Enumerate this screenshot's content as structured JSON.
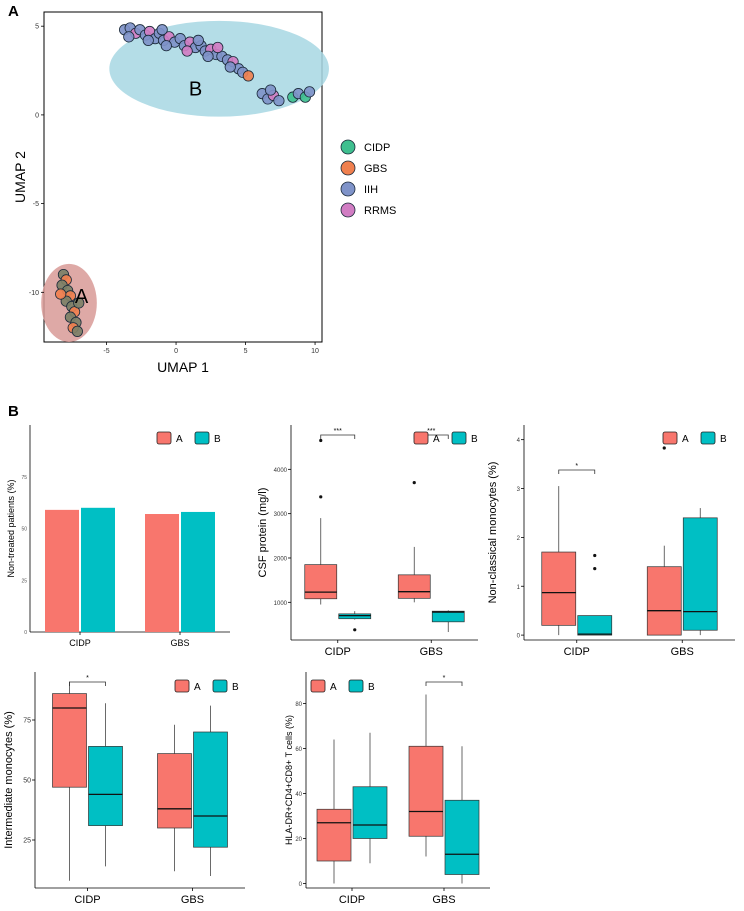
{
  "panels": {
    "a": "A",
    "b": "B"
  },
  "colors": {
    "CIDP": "#3fbf8f",
    "GBS": "#f0804f",
    "IIH": "#7f93c9",
    "RRMS": "#d17dc3",
    "groupA": "#f8766d",
    "groupB": "#00bfc4",
    "ellipseA": "#d89a96",
    "ellipseB": "#a7d7e3"
  },
  "chart_data": [
    {
      "type": "scatter",
      "xlabel": "UMAP 1",
      "ylabel": "UMAP 2",
      "xlim": [
        -9.5,
        10.5
      ],
      "ylim": [
        -12.8,
        5.8
      ],
      "xticks": [
        "-5",
        "0",
        "5",
        "10"
      ],
      "yticks": [
        "5",
        "0",
        "-5",
        "-10"
      ],
      "legend": [
        "CIDP",
        "GBS",
        "IIH",
        "RRMS"
      ],
      "clusters": [
        {
          "label": "A",
          "center": [
            -7.7,
            -10.6
          ],
          "rx": 2.0,
          "ry": 2.2,
          "label_pos": [
            -6.8,
            -10.2
          ]
        },
        {
          "label": "B",
          "center": [
            3.1,
            2.6
          ],
          "rx": 7.9,
          "ry": 2.7,
          "label_pos": [
            1.4,
            1.5
          ]
        }
      ],
      "points": [
        {
          "x": -3.7,
          "y": 4.8,
          "g": "IIH"
        },
        {
          "x": -3.3,
          "y": 4.9,
          "g": "IIH"
        },
        {
          "x": -2.9,
          "y": 4.6,
          "g": "RRMS"
        },
        {
          "x": -2.6,
          "y": 4.8,
          "g": "IIH"
        },
        {
          "x": -2.2,
          "y": 4.5,
          "g": "IIH"
        },
        {
          "x": -1.9,
          "y": 4.7,
          "g": "RRMS"
        },
        {
          "x": -1.5,
          "y": 4.3,
          "g": "IIH"
        },
        {
          "x": -1.2,
          "y": 4.6,
          "g": "IIH"
        },
        {
          "x": -0.9,
          "y": 4.2,
          "g": "IIH"
        },
        {
          "x": -0.5,
          "y": 4.4,
          "g": "RRMS"
        },
        {
          "x": -0.1,
          "y": 4.1,
          "g": "IIH"
        },
        {
          "x": 0.3,
          "y": 4.3,
          "g": "IIH"
        },
        {
          "x": 0.6,
          "y": 3.9,
          "g": "IIH"
        },
        {
          "x": 1.0,
          "y": 4.1,
          "g": "RRMS"
        },
        {
          "x": 1.4,
          "y": 3.8,
          "g": "IIH"
        },
        {
          "x": 1.8,
          "y": 3.9,
          "g": "IIH"
        },
        {
          "x": 2.1,
          "y": 3.6,
          "g": "IIH"
        },
        {
          "x": 2.5,
          "y": 3.7,
          "g": "RRMS"
        },
        {
          "x": 2.9,
          "y": 3.4,
          "g": "IIH"
        },
        {
          "x": 3.3,
          "y": 3.3,
          "g": "IIH"
        },
        {
          "x": 3.7,
          "y": 3.1,
          "g": "IIH"
        },
        {
          "x": 4.1,
          "y": 3.0,
          "g": "RRMS"
        },
        {
          "x": 4.5,
          "y": 2.6,
          "g": "IIH"
        },
        {
          "x": 4.8,
          "y": 2.4,
          "g": "IIH"
        },
        {
          "x": 5.2,
          "y": 2.2,
          "g": "GBS"
        },
        {
          "x": -3.4,
          "y": 4.4,
          "g": "IIH"
        },
        {
          "x": -2.0,
          "y": 4.2,
          "g": "IIH"
        },
        {
          "x": -0.7,
          "y": 3.9,
          "g": "IIH"
        },
        {
          "x": 0.8,
          "y": 3.6,
          "g": "RRMS"
        },
        {
          "x": 2.3,
          "y": 3.3,
          "g": "IIH"
        },
        {
          "x": 3.9,
          "y": 2.7,
          "g": "IIH"
        },
        {
          "x": -1.0,
          "y": 4.8,
          "g": "IIH"
        },
        {
          "x": 1.6,
          "y": 4.2,
          "g": "IIH"
        },
        {
          "x": 3.0,
          "y": 3.8,
          "g": "RRMS"
        },
        {
          "x": 6.2,
          "y": 1.2,
          "g": "IIH"
        },
        {
          "x": 6.6,
          "y": 0.9,
          "g": "IIH"
        },
        {
          "x": 7.0,
          "y": 1.1,
          "g": "RRMS"
        },
        {
          "x": 7.4,
          "y": 0.8,
          "g": "IIH"
        },
        {
          "x": 6.8,
          "y": 1.4,
          "g": "IIH"
        },
        {
          "x": 8.4,
          "y": 1.0,
          "g": "CIDP"
        },
        {
          "x": 8.8,
          "y": 1.2,
          "g": "IIH"
        },
        {
          "x": 9.3,
          "y": 1.0,
          "g": "CIDP"
        },
        {
          "x": 9.6,
          "y": 1.3,
          "g": "IIH"
        },
        {
          "x": -8.1,
          "y": -9.0,
          "g": "CIDP"
        },
        {
          "x": -7.9,
          "y": -9.3,
          "g": "GBS"
        },
        {
          "x": -8.2,
          "y": -9.6,
          "g": "CIDP"
        },
        {
          "x": -7.8,
          "y": -9.9,
          "g": "CIDP"
        },
        {
          "x": -7.6,
          "y": -10.2,
          "g": "GBS"
        },
        {
          "x": -7.9,
          "y": -10.5,
          "g": "CIDP"
        },
        {
          "x": -7.5,
          "y": -10.8,
          "g": "CIDP"
        },
        {
          "x": -7.3,
          "y": -11.1,
          "g": "GBS"
        },
        {
          "x": -7.6,
          "y": -11.4,
          "g": "CIDP"
        },
        {
          "x": -7.2,
          "y": -11.7,
          "g": "CIDP"
        },
        {
          "x": -7.4,
          "y": -12.0,
          "g": "GBS"
        },
        {
          "x": -7.1,
          "y": -12.2,
          "g": "CIDP"
        },
        {
          "x": -7.0,
          "y": -10.6,
          "g": "CIDP"
        },
        {
          "x": -8.3,
          "y": -10.1,
          "g": "GBS"
        }
      ]
    },
    {
      "type": "bar",
      "ylabel": "Non-treated patients (%)",
      "categories": [
        "CIDP",
        "GBS"
      ],
      "series": [
        {
          "name": "A",
          "values": [
            59,
            57
          ]
        },
        {
          "name": "B",
          "values": [
            60,
            58
          ]
        }
      ],
      "ylim": [
        0,
        100
      ],
      "legend": [
        "A",
        "B"
      ]
    },
    {
      "type": "box",
      "ylabel": "CSF protein (mg/l)",
      "categories": [
        "CIDP",
        "GBS"
      ],
      "ylim": [
        150,
        5000
      ],
      "yticks": [
        "1000",
        "2000",
        "3000",
        "4000"
      ],
      "legend": [
        "A",
        "B"
      ],
      "significance": [
        {
          "category": "CIDP",
          "label": "***"
        },
        {
          "category": "GBS",
          "label": "***"
        }
      ],
      "boxes": [
        {
          "category": "CIDP",
          "group": "A",
          "min": 950,
          "q1": 1080,
          "median": 1230,
          "q3": 1850,
          "max": 2900,
          "outliers": [
            3380,
            4650
          ]
        },
        {
          "category": "CIDP",
          "group": "B",
          "min": 610,
          "q1": 630,
          "median": 700,
          "q3": 740,
          "max": 800,
          "outliers": [
            380
          ]
        },
        {
          "category": "GBS",
          "group": "A",
          "min": 1000,
          "q1": 1090,
          "median": 1240,
          "q3": 1620,
          "max": 2250,
          "outliers": [
            3700
          ]
        },
        {
          "category": "GBS",
          "group": "B",
          "min": 330,
          "q1": 560,
          "median": 780,
          "q3": 800,
          "max": 820,
          "outliers": []
        }
      ]
    },
    {
      "type": "box",
      "ylabel": "Non-classical monocytes (%)",
      "categories": [
        "CIDP",
        "GBS"
      ],
      "ylim": [
        -0.1,
        4.3
      ],
      "yticks": [
        "0",
        "1",
        "2",
        "3",
        "4"
      ],
      "legend": [
        "A",
        "B"
      ],
      "significance": [
        {
          "category": "CIDP",
          "label": "*"
        }
      ],
      "boxes": [
        {
          "category": "CIDP",
          "group": "A",
          "min": 0.0,
          "q1": 0.2,
          "median": 0.87,
          "q3": 1.7,
          "max": 3.05,
          "outliers": []
        },
        {
          "category": "CIDP",
          "group": "B",
          "min": 0.0,
          "q1": 0.0,
          "median": 0.02,
          "q3": 0.4,
          "max": 0.4,
          "outliers": [
            1.36,
            1.63
          ]
        },
        {
          "category": "GBS",
          "group": "A",
          "min": 0.0,
          "q1": 0.0,
          "median": 0.5,
          "q3": 1.4,
          "max": 1.83,
          "outliers": [
            3.83
          ]
        },
        {
          "category": "GBS",
          "group": "B",
          "min": 0.0,
          "q1": 0.1,
          "median": 0.48,
          "q3": 2.4,
          "max": 2.6,
          "outliers": []
        }
      ]
    },
    {
      "type": "box",
      "ylabel": "Intermediate monocytes (%)",
      "categories": [
        "CIDP",
        "GBS"
      ],
      "ylim": [
        5,
        95
      ],
      "yticks": [
        "25",
        "50",
        "75"
      ],
      "legend": [
        "A",
        "B"
      ],
      "significance": [
        {
          "category": "CIDP",
          "label": "*"
        }
      ],
      "boxes": [
        {
          "category": "CIDP",
          "group": "A",
          "min": 8,
          "q1": 47,
          "median": 80,
          "q3": 86,
          "max": 91,
          "outliers": []
        },
        {
          "category": "CIDP",
          "group": "B",
          "min": 14,
          "q1": 31,
          "median": 44,
          "q3": 64,
          "max": 82,
          "outliers": []
        },
        {
          "category": "GBS",
          "group": "A",
          "min": 12,
          "q1": 30,
          "median": 38,
          "q3": 61,
          "max": 73,
          "outliers": []
        },
        {
          "category": "GBS",
          "group": "B",
          "min": 10,
          "q1": 22,
          "median": 35,
          "q3": 70,
          "max": 81,
          "outliers": []
        }
      ]
    },
    {
      "type": "box",
      "ylabel": "HLA-DR+CD4+CD8+ T cells (%)",
      "categories": [
        "CIDP",
        "GBS"
      ],
      "ylim": [
        -2,
        94
      ],
      "yticks": [
        "0",
        "20",
        "40",
        "60",
        "80"
      ],
      "legend": [
        "A",
        "B"
      ],
      "significance": [
        {
          "category": "GBS",
          "label": "*"
        }
      ],
      "boxes": [
        {
          "category": "CIDP",
          "group": "A",
          "min": 0,
          "q1": 10,
          "median": 27,
          "q3": 33,
          "max": 64,
          "outliers": []
        },
        {
          "category": "CIDP",
          "group": "B",
          "min": 9,
          "q1": 20,
          "median": 26,
          "q3": 43,
          "max": 67,
          "outliers": []
        },
        {
          "category": "GBS",
          "group": "A",
          "min": 12,
          "q1": 21,
          "median": 32,
          "q3": 61,
          "max": 84,
          "outliers": []
        },
        {
          "category": "GBS",
          "group": "B",
          "min": 0,
          "q1": 4,
          "median": 13,
          "q3": 37,
          "max": 61,
          "outliers": []
        }
      ]
    }
  ]
}
